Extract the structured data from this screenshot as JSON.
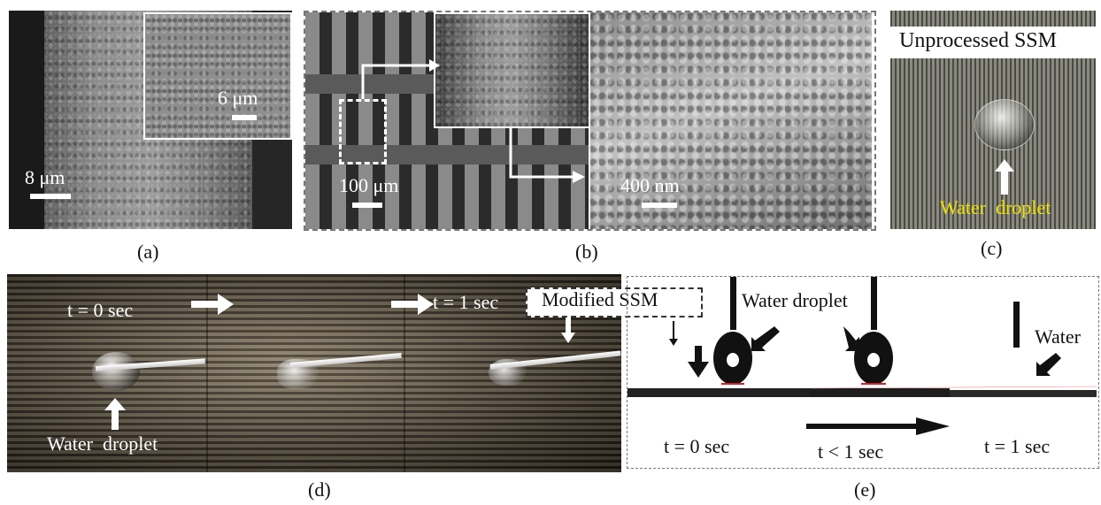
{
  "panels": {
    "a": {
      "caption": "(a)",
      "scale_main": "8 μm",
      "scale_inset": "6 μm"
    },
    "b": {
      "caption": "(b)",
      "scale_left": "100 μm",
      "scale_right": "400 nm"
    },
    "c": {
      "caption": "(c)",
      "title": "Unprocessed SSM",
      "droplet_label": "Water  droplet"
    },
    "d": {
      "caption": "(d)",
      "t0": "t = 0 sec",
      "t1": "t = 1 sec",
      "modified_label": "Modified SSM",
      "droplet_label": "Water  droplet"
    },
    "e": {
      "caption": "(e)",
      "droplet_label": "Water droplet",
      "water_label": "Water",
      "t0": "t = 0 sec",
      "t_mid": "t < 1 sec",
      "t1": "t = 1 sec"
    }
  },
  "colors": {
    "droplet_label_c": "#f0e000",
    "contact_line": "#d0202a"
  }
}
